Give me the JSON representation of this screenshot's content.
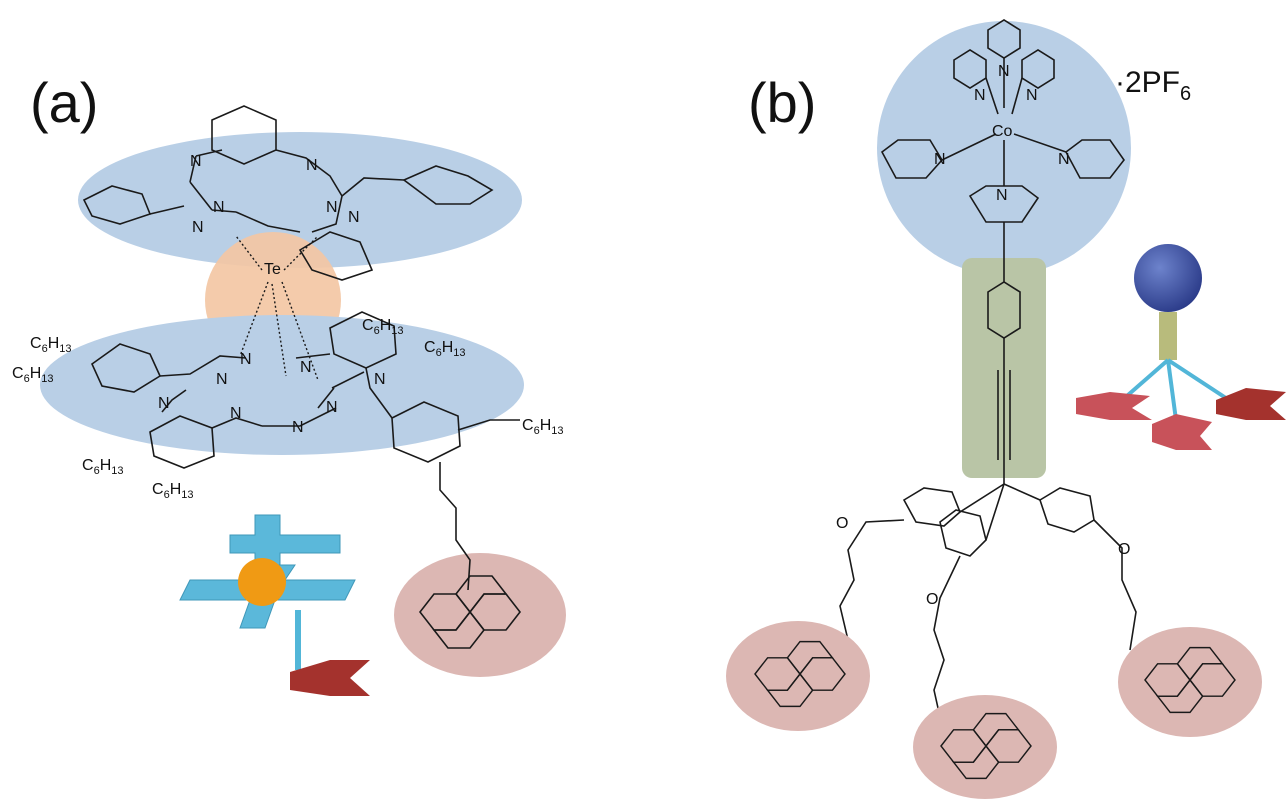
{
  "panels": {
    "a": {
      "label": "(a)",
      "center_atom": "Te",
      "nitrogen": "N",
      "substituent": {
        "main": "C",
        "sub1": "6",
        "mid": "H",
        "sub2": "13"
      }
    },
    "b": {
      "label": "(b)",
      "metal": "Co",
      "nitrogen": "N",
      "oxygen": "O",
      "counterion": {
        "prefix": "·2PF",
        "sub": "6"
      }
    }
  },
  "colors": {
    "blue_disc": "#b9cfe6",
    "peach_disc": "#f3c7a4",
    "pink_disc": "#dcb7b3",
    "green_rod": "#b9c5a6",
    "cyan_cross": "#5bb8da",
    "orange_ball": "#f09a14",
    "dark_red_arrow": "#a4322d",
    "navy_ball": "#3a4fa3",
    "olive_stem": "#b8bb7c",
    "cyan_linker": "#52b6d8"
  }
}
